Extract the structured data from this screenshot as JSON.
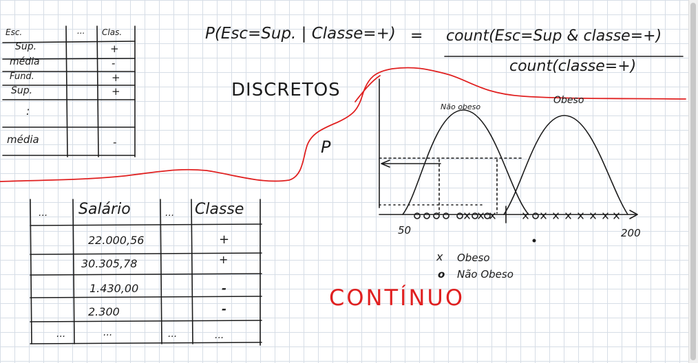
{
  "colors": {
    "ink": "#1c1c1c",
    "red_pen": "#e02020",
    "grid": "#d6dde6"
  },
  "discrete_table": {
    "headers": [
      "Esc.",
      "...",
      "Clas."
    ],
    "rows": [
      [
        "Sup.",
        "+"
      ],
      [
        "média",
        "-"
      ],
      [
        "Fund.",
        "+"
      ],
      [
        "Sup.",
        "+"
      ],
      [
        ":",
        ""
      ],
      [
        "média",
        "-"
      ]
    ]
  },
  "formula": {
    "lhs": "P(Esc=Sup. | Classe=+)",
    "equals": "=",
    "numerator": "count(Esc=Sup & classe=+)",
    "denominator": "count(classe=+)"
  },
  "labels": {
    "discretos": "DISCRETOS",
    "continuo": "CONTÍNUO",
    "p": "P",
    "nao_obeso": "Não obeso",
    "obeso": "Obeso",
    "axis_min": "50",
    "axis_max": "200"
  },
  "legend": {
    "x_symbol": "x",
    "x_label": "Obeso",
    "o_symbol": "o",
    "o_label": "Não Obeso"
  },
  "continuous_table": {
    "headers": [
      "...",
      "Salário",
      "...",
      "Classe"
    ],
    "rows": [
      [
        "",
        "22.000,56",
        "",
        "+"
      ],
      [
        "",
        "30.305,78",
        "",
        "+"
      ],
      [
        "",
        "1.430,00",
        "",
        "-"
      ],
      [
        "",
        "2.300",
        "",
        "-"
      ],
      [
        "...",
        "...",
        "...",
        "..."
      ]
    ]
  }
}
